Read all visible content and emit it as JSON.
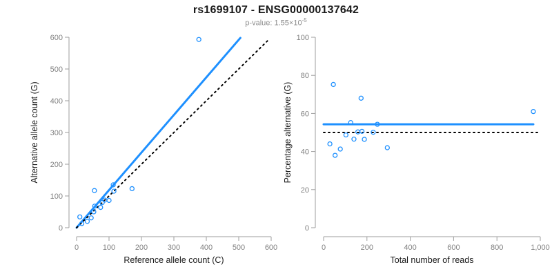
{
  "header": {
    "title": "rs1699107 - ENSG00000137642",
    "pvalue_prefix": "p-value: 1.55×10",
    "pvalue_exponent": "-5"
  },
  "colors": {
    "accent_blue": "#1E90FF",
    "dotted_black": "#000000",
    "tick_gray": "#808080",
    "axis_gray": "#9e9e9e",
    "label_black": "#1a1a1a"
  },
  "chart_data": [
    {
      "type": "scatter",
      "panel": "left",
      "xlabel": "Reference allele count (C)",
      "ylabel": "Alternative allele count (G)",
      "xlim": [
        0,
        600
      ],
      "ylim": [
        0,
        600
      ],
      "grid": false,
      "xticks": [
        {
          "v": 0,
          "label": "0"
        },
        {
          "v": 100,
          "label": "100"
        },
        {
          "v": 200,
          "label": "200"
        },
        {
          "v": 300,
          "label": "300"
        },
        {
          "v": 400,
          "label": "400"
        },
        {
          "v": 500,
          "label": "500"
        },
        {
          "v": 600,
          "label": "600"
        }
      ],
      "yticks": [
        {
          "v": 0,
          "label": "0"
        },
        {
          "v": 100,
          "label": "100"
        },
        {
          "v": 200,
          "label": "200"
        },
        {
          "v": 300,
          "label": "300"
        },
        {
          "v": 400,
          "label": "400"
        },
        {
          "v": 500,
          "label": "500"
        },
        {
          "v": 600,
          "label": "600"
        }
      ],
      "points": [
        [
          10,
          34
        ],
        [
          16,
          13
        ],
        [
          33,
          20
        ],
        [
          45,
          31
        ],
        [
          53,
          50
        ],
        [
          55,
          117
        ],
        [
          56,
          68
        ],
        [
          74,
          64
        ],
        [
          79,
          79
        ],
        [
          87,
          87
        ],
        [
          100,
          86
        ],
        [
          113,
          135
        ],
        [
          115,
          115
        ],
        [
          171,
          123
        ],
        [
          377,
          593
        ]
      ],
      "point_color": "#1E90FF",
      "lines": [
        {
          "name": "regression-line",
          "style": "solid",
          "color": "#1E90FF",
          "width": 3,
          "x1": 0,
          "y1": 0,
          "x2": 505,
          "y2": 598
        },
        {
          "name": "identity-line",
          "style": "dotted",
          "color": "#000000",
          "width": 2,
          "x1": 0,
          "y1": 0,
          "x2": 595,
          "y2": 595
        }
      ]
    },
    {
      "type": "scatter",
      "panel": "right",
      "xlabel": "Total number of reads",
      "ylabel": "Percentage alternative (G)",
      "xlim": [
        0,
        1000
      ],
      "ylim": [
        0,
        100
      ],
      "grid": false,
      "xticks": [
        {
          "v": 0,
          "label": "0"
        },
        {
          "v": 200,
          "label": "200"
        },
        {
          "v": 400,
          "label": "400"
        },
        {
          "v": 600,
          "label": "600"
        },
        {
          "v": 800,
          "label": "800"
        },
        {
          "v": 1000,
          "label": "1,000"
        }
      ],
      "yticks": [
        {
          "v": 0,
          "label": "0"
        },
        {
          "v": 20,
          "label": "20"
        },
        {
          "v": 40,
          "label": "40"
        },
        {
          "v": 60,
          "label": "60"
        },
        {
          "v": 80,
          "label": "80"
        },
        {
          "v": 100,
          "label": "100"
        }
      ],
      "points": [
        [
          29,
          44
        ],
        [
          45,
          75.2
        ],
        [
          53,
          38
        ],
        [
          77,
          41.3
        ],
        [
          103,
          48.7
        ],
        [
          125,
          55.2
        ],
        [
          140,
          46.5
        ],
        [
          158,
          50.3
        ],
        [
          173,
          68
        ],
        [
          177,
          50.6
        ],
        [
          188,
          46.4
        ],
        [
          229,
          50.1
        ],
        [
          248,
          54.3
        ],
        [
          294,
          42
        ],
        [
          968,
          61
        ]
      ],
      "point_color": "#1E90FF",
      "lines": [
        {
          "name": "mean-percentage-line",
          "style": "solid",
          "color": "#1E90FF",
          "width": 3,
          "x1": 0,
          "y1": 54.3,
          "x2": 968,
          "y2": 54.3
        },
        {
          "name": "fifty-percent-line",
          "style": "dotted",
          "color": "#000000",
          "width": 2,
          "x1": 0,
          "y1": 50,
          "x2": 1000,
          "y2": 50
        }
      ]
    }
  ]
}
